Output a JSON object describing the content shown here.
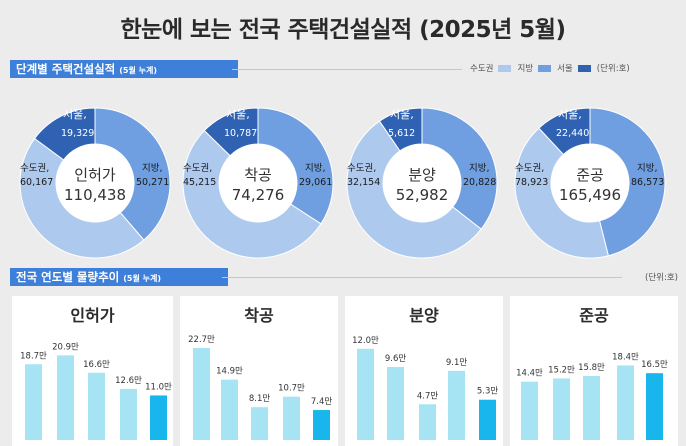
{
  "header": {
    "title": "한눈에 보는 전국 주택건설실적 (2025년 5월)"
  },
  "section1": {
    "label": "단계별 주택건설실적",
    "sub": "(5월 누계)"
  },
  "section2": {
    "label": "전국 연도별 물량추이",
    "sub": "(5월 누계)"
  },
  "legend": {
    "items": [
      {
        "label": "수도권",
        "color": "#aec9ee"
      },
      {
        "label": "지방",
        "color": "#6f9fe0"
      },
      {
        "label": "서울",
        "color": "#2f62b3"
      }
    ],
    "unit": "(단위:호)"
  },
  "unit2": "(단위:호)",
  "chart_data": [
    {
      "type": "pie",
      "title": "인허가",
      "total": "110,438",
      "slices": [
        {
          "name": "서울",
          "value": 19329,
          "label": "19,329"
        },
        {
          "name": "수도권",
          "value": 60167,
          "label": "60,167"
        },
        {
          "name": "지방",
          "value": 50271,
          "label": "50,271"
        }
      ],
      "labels": {
        "seoul": "서울,",
        "capital": "수도권,",
        "local": "지방,"
      }
    },
    {
      "type": "pie",
      "title": "착공",
      "total": "74,276",
      "slices": [
        {
          "name": "서울",
          "value": 10787,
          "label": "10,787"
        },
        {
          "name": "수도권",
          "value": 45215,
          "label": "45,215"
        },
        {
          "name": "지방",
          "value": 29061,
          "label": "29,061"
        }
      ],
      "labels": {
        "seoul": "서울,",
        "capital": "수도권,",
        "local": "지방,"
      }
    },
    {
      "type": "pie",
      "title": "분양",
      "total": "52,982",
      "slices": [
        {
          "name": "서울",
          "value": 5612,
          "label": "5,612"
        },
        {
          "name": "수도권",
          "value": 32154,
          "label": "32,154"
        },
        {
          "name": "지방",
          "value": 20828,
          "label": "20,828"
        }
      ],
      "labels": {
        "seoul": "서울,",
        "capital": "수도권,",
        "local": "지방,"
      }
    },
    {
      "type": "pie",
      "title": "준공",
      "total": "165,496",
      "slices": [
        {
          "name": "서울",
          "value": 22440,
          "label": "22,440"
        },
        {
          "name": "수도권",
          "value": 78923,
          "label": "78,923"
        },
        {
          "name": "지방",
          "value": 86573,
          "label": "86,573"
        }
      ],
      "labels": {
        "seoul": "서울,",
        "capital": "수도권,",
        "local": "지방,"
      }
    },
    {
      "type": "bar",
      "title": "인허가",
      "categories": [
        "",
        "",
        "",
        "",
        ""
      ],
      "values": [
        18.7,
        20.9,
        16.6,
        12.6,
        11.0
      ],
      "labels": [
        "18.7만",
        "20.9만",
        "16.6만",
        "12.6만",
        "11.0만"
      ],
      "ylim": [
        0,
        25
      ]
    },
    {
      "type": "bar",
      "title": "착공",
      "categories": [
        "",
        "",
        "",
        "",
        ""
      ],
      "values": [
        22.7,
        14.9,
        8.1,
        10.7,
        7.4
      ],
      "labels": [
        "22.7만",
        "14.9만",
        "8.1만",
        "10.7만",
        "7.4만"
      ],
      "ylim": [
        0,
        25
      ]
    },
    {
      "type": "bar",
      "title": "분양",
      "categories": [
        "",
        "",
        "",
        "",
        ""
      ],
      "values": [
        12.0,
        9.6,
        4.7,
        9.1,
        5.3
      ],
      "labels": [
        "12.0만",
        "9.6만",
        "4.7만",
        "9.1만",
        "5.3만"
      ],
      "ylim": [
        0,
        13
      ]
    },
    {
      "type": "bar",
      "title": "준공",
      "categories": [
        "",
        "",
        "",
        "",
        ""
      ],
      "values": [
        14.4,
        15.2,
        15.8,
        18.4,
        16.5
      ],
      "labels": [
        "14.4만",
        "15.2만",
        "15.8만",
        "18.4만",
        "16.5만"
      ],
      "ylim": [
        0,
        20
      ]
    }
  ],
  "colors": {
    "capital": "#aec9ee",
    "local": "#6f9fe0",
    "seoul": "#2f62b3",
    "bar": "#a6e3f3",
    "bar_current": "#18b6ec",
    "inner": "#ffffff"
  }
}
